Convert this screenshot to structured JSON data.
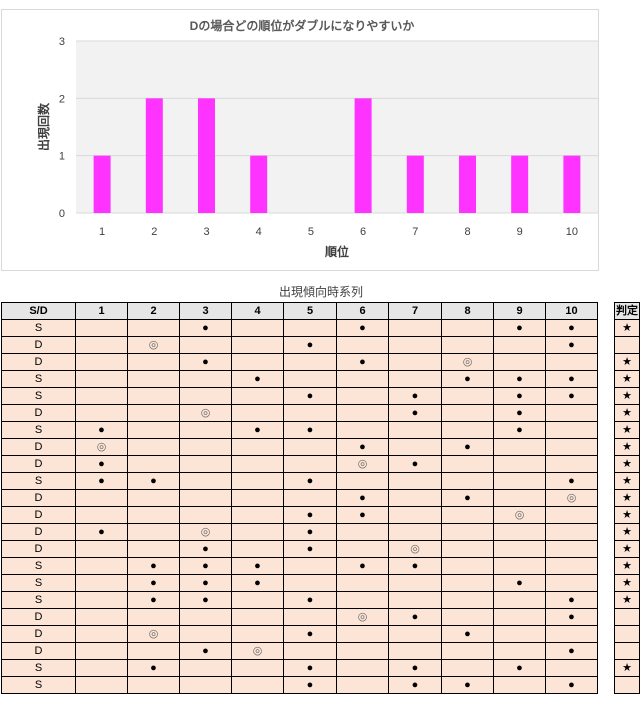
{
  "chart_data": {
    "type": "bar",
    "title": "Dの場合どの順位がダブルになりやすいか",
    "xlabel": "順位",
    "ylabel": "出現回数",
    "categories": [
      "1",
      "2",
      "3",
      "4",
      "5",
      "6",
      "7",
      "8",
      "9",
      "10"
    ],
    "values": [
      1,
      2,
      2,
      1,
      0,
      2,
      1,
      1,
      1,
      1
    ],
    "ylim": [
      0,
      3
    ],
    "yticks": [
      0,
      1,
      2,
      3
    ],
    "bar_color": "#ff33ff",
    "grid": true,
    "legend": "none"
  },
  "table": {
    "title": "出現傾向時系列",
    "headers": [
      "S/D",
      "1",
      "2",
      "3",
      "4",
      "5",
      "6",
      "7",
      "8",
      "9",
      "10"
    ],
    "judge_header": "判定",
    "marks": {
      "dot": "●",
      "double": "◎",
      "star": "★"
    },
    "rows": [
      {
        "sd": "S",
        "cells": [
          "",
          "",
          "●",
          "",
          "",
          "●",
          "",
          "",
          "●",
          "●"
        ],
        "judge": "★"
      },
      {
        "sd": "D",
        "cells": [
          "",
          "◎",
          "",
          "",
          "●",
          "",
          "",
          "",
          "",
          "●"
        ],
        "judge": ""
      },
      {
        "sd": "D",
        "cells": [
          "",
          "",
          "●",
          "",
          "",
          "●",
          "",
          "◎",
          "",
          ""
        ],
        "judge": "★"
      },
      {
        "sd": "S",
        "cells": [
          "",
          "",
          "",
          "●",
          "",
          "",
          "",
          "●",
          "●",
          "●"
        ],
        "judge": "★"
      },
      {
        "sd": "S",
        "cells": [
          "",
          "",
          "",
          "",
          "●",
          "",
          "●",
          "",
          "●",
          "●"
        ],
        "judge": "★"
      },
      {
        "sd": "D",
        "cells": [
          "",
          "",
          "◎",
          "",
          "",
          "",
          "●",
          "",
          "●",
          ""
        ],
        "judge": "★"
      },
      {
        "sd": "S",
        "cells": [
          "●",
          "",
          "",
          "●",
          "●",
          "",
          "",
          "",
          "●",
          ""
        ],
        "judge": "★"
      },
      {
        "sd": "D",
        "cells": [
          "◎",
          "",
          "",
          "",
          "",
          "●",
          "",
          "●",
          "",
          ""
        ],
        "judge": "★"
      },
      {
        "sd": "D",
        "cells": [
          "●",
          "",
          "",
          "",
          "",
          "◎",
          "●",
          "",
          "",
          ""
        ],
        "judge": "★"
      },
      {
        "sd": "S",
        "cells": [
          "●",
          "●",
          "",
          "",
          "●",
          "",
          "",
          "",
          "",
          "●"
        ],
        "judge": "★"
      },
      {
        "sd": "D",
        "cells": [
          "",
          "",
          "",
          "",
          "",
          "●",
          "",
          "●",
          "",
          "◎"
        ],
        "judge": "★"
      },
      {
        "sd": "D",
        "cells": [
          "",
          "",
          "",
          "",
          "●",
          "●",
          "",
          "",
          "◎",
          ""
        ],
        "judge": "★"
      },
      {
        "sd": "D",
        "cells": [
          "●",
          "",
          "◎",
          "",
          "●",
          "",
          "",
          "",
          "",
          ""
        ],
        "judge": "★"
      },
      {
        "sd": "D",
        "cells": [
          "",
          "",
          "●",
          "",
          "●",
          "",
          "◎",
          "",
          "",
          ""
        ],
        "judge": "★"
      },
      {
        "sd": "S",
        "cells": [
          "",
          "●",
          "●",
          "●",
          "",
          "●",
          "●",
          "",
          "",
          ""
        ],
        "judge": "★"
      },
      {
        "sd": "S",
        "cells": [
          "",
          "●",
          "●",
          "●",
          "",
          "",
          "",
          "",
          "●",
          ""
        ],
        "judge": "★"
      },
      {
        "sd": "S",
        "cells": [
          "",
          "●",
          "●",
          "",
          "●",
          "",
          "",
          "",
          "",
          "●"
        ],
        "judge": "★"
      },
      {
        "sd": "D",
        "cells": [
          "",
          "",
          "",
          "",
          "",
          "◎",
          "●",
          "",
          "",
          "●"
        ],
        "judge": ""
      },
      {
        "sd": "D",
        "cells": [
          "",
          "◎",
          "",
          "",
          "●",
          "",
          "",
          "●",
          "",
          ""
        ],
        "judge": ""
      },
      {
        "sd": "D",
        "cells": [
          "",
          "",
          "●",
          "◎",
          "",
          "",
          "",
          "",
          "",
          "●"
        ],
        "judge": ""
      },
      {
        "sd": "S",
        "cells": [
          "",
          "●",
          "",
          "",
          "●",
          "",
          "●",
          "",
          "●",
          ""
        ],
        "judge": "★"
      },
      {
        "sd": "S",
        "cells": [
          "",
          "",
          "",
          "",
          "●",
          "",
          "●",
          "●",
          "",
          "●"
        ],
        "judge": ""
      }
    ]
  }
}
